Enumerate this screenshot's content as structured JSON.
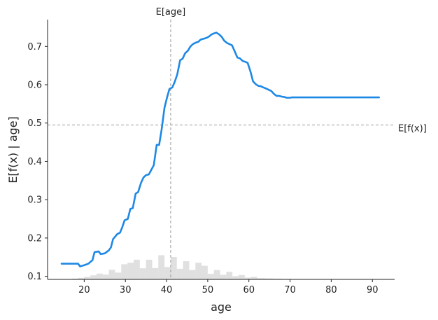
{
  "chart_data": {
    "type": "line",
    "title": "",
    "xlabel": "age",
    "ylabel": "E[f(x) | age]",
    "xlim": [
      11.1,
      95.4
    ],
    "ylim": [
      0.092,
      0.77
    ],
    "xticks": [
      20,
      30,
      40,
      50,
      60,
      70,
      80,
      90
    ],
    "yticks": [
      0.1,
      0.2,
      0.3,
      0.4,
      0.5,
      0.6,
      0.7
    ],
    "grid": false,
    "line_color": "#1e88e5",
    "series": [
      {
        "x": [
          14.5,
          17,
          18.5,
          19,
          20,
          21,
          22,
          22.5,
          23.5,
          24,
          25,
          26,
          26.5,
          27,
          28,
          28.7,
          29.2,
          29.8,
          30.6,
          31.2,
          31.8,
          32.5,
          33.1,
          33.8,
          34.4,
          35,
          35.7,
          36.3,
          36.9,
          37.6,
          38.2,
          38.8,
          39.5,
          40.1,
          40.7,
          41.4,
          42,
          42.6,
          43.3,
          43.9,
          44.5,
          45.2,
          45.8,
          46.4,
          47.1,
          47.7,
          48.3,
          49,
          49.6,
          50.2,
          50.9,
          51.5,
          52.1,
          52.8,
          53.4,
          54,
          54.7,
          55.3,
          55.9,
          56.6,
          57.2,
          57.8,
          58.5,
          59.1,
          59.7,
          60.4,
          61,
          61.6,
          62.3,
          62.9,
          63.5,
          64.2,
          64.8,
          65.4,
          66.1,
          66.7,
          67.3,
          68,
          68.6,
          69.2,
          69.9,
          70.5,
          71.1,
          71.8,
          72.4,
          73,
          74,
          75,
          76,
          77,
          78,
          80,
          82,
          84,
          86,
          88,
          90,
          91.6
        ],
        "y": [
          0.133,
          0.133,
          0.133,
          0.126,
          0.129,
          0.133,
          0.142,
          0.163,
          0.165,
          0.158,
          0.16,
          0.168,
          0.176,
          0.197,
          0.21,
          0.214,
          0.227,
          0.246,
          0.25,
          0.276,
          0.278,
          0.316,
          0.32,
          0.344,
          0.358,
          0.364,
          0.366,
          0.378,
          0.39,
          0.443,
          0.443,
          0.483,
          0.54,
          0.566,
          0.589,
          0.593,
          0.608,
          0.627,
          0.664,
          0.668,
          0.682,
          0.689,
          0.7,
          0.706,
          0.71,
          0.712,
          0.718,
          0.72,
          0.722,
          0.725,
          0.731,
          0.734,
          0.736,
          0.731,
          0.725,
          0.715,
          0.709,
          0.706,
          0.703,
          0.686,
          0.671,
          0.669,
          0.662,
          0.66,
          0.657,
          0.634,
          0.609,
          0.602,
          0.597,
          0.596,
          0.593,
          0.59,
          0.587,
          0.584,
          0.576,
          0.571,
          0.571,
          0.569,
          0.568,
          0.566,
          0.566,
          0.567,
          0.567,
          0.567,
          0.567,
          0.567,
          0.567,
          0.567,
          0.567,
          0.567,
          0.567,
          0.567,
          0.567,
          0.567,
          0.567,
          0.567,
          0.567,
          0.567
        ]
      }
    ],
    "reference_lines": [
      {
        "orientation": "vertical",
        "value": 41.0,
        "label": "E[age]",
        "color": "#999999"
      },
      {
        "orientation": "horizontal",
        "value": 0.495,
        "label": "E[f(x)]",
        "color": "#999999"
      }
    ],
    "histogram": {
      "color": "#cccccc",
      "opacity": 0.6,
      "bins": [
        {
          "x0": 17.0,
          "x1": 18.5,
          "frac": 0.03
        },
        {
          "x0": 18.5,
          "x1": 20.0,
          "frac": 0.06
        },
        {
          "x0": 20.0,
          "x1": 21.5,
          "frac": 0.1
        },
        {
          "x0": 21.5,
          "x1": 23.0,
          "frac": 0.16
        },
        {
          "x0": 23.0,
          "x1": 24.5,
          "frac": 0.23
        },
        {
          "x0": 24.5,
          "x1": 26.0,
          "frac": 0.19
        },
        {
          "x0": 26.0,
          "x1": 27.5,
          "frac": 0.38
        },
        {
          "x0": 27.5,
          "x1": 29.0,
          "frac": 0.27
        },
        {
          "x0": 29.0,
          "x1": 30.5,
          "frac": 0.6
        },
        {
          "x0": 30.5,
          "x1": 32.0,
          "frac": 0.66
        },
        {
          "x0": 32.0,
          "x1": 33.5,
          "frac": 0.78
        },
        {
          "x0": 33.5,
          "x1": 35.0,
          "frac": 0.44
        },
        {
          "x0": 35.0,
          "x1": 36.5,
          "frac": 0.78
        },
        {
          "x0": 36.5,
          "x1": 38.0,
          "frac": 0.45
        },
        {
          "x0": 38.0,
          "x1": 39.5,
          "frac": 0.96
        },
        {
          "x0": 39.5,
          "x1": 41.0,
          "frac": 0.49
        },
        {
          "x0": 41.0,
          "x1": 42.5,
          "frac": 0.89
        },
        {
          "x0": 42.5,
          "x1": 44.0,
          "frac": 0.42
        },
        {
          "x0": 44.0,
          "x1": 45.5,
          "frac": 0.72
        },
        {
          "x0": 45.5,
          "x1": 47.0,
          "frac": 0.37
        },
        {
          "x0": 47.0,
          "x1": 48.5,
          "frac": 0.66
        },
        {
          "x0": 48.5,
          "x1": 50.0,
          "frac": 0.54
        },
        {
          "x0": 50.0,
          "x1": 51.5,
          "frac": 0.22
        },
        {
          "x0": 51.5,
          "x1": 53.0,
          "frac": 0.37
        },
        {
          "x0": 53.0,
          "x1": 54.5,
          "frac": 0.18
        },
        {
          "x0": 54.5,
          "x1": 56.0,
          "frac": 0.3
        },
        {
          "x0": 56.0,
          "x1": 57.5,
          "frac": 0.13
        },
        {
          "x0": 57.5,
          "x1": 59.0,
          "frac": 0.17
        },
        {
          "x0": 59.0,
          "x1": 60.5,
          "frac": 0.07
        },
        {
          "x0": 60.5,
          "x1": 62.0,
          "frac": 0.1
        },
        {
          "x0": 62.0,
          "x1": 64.0,
          "frac": 0.05
        },
        {
          "x0": 64.0,
          "x1": 66.0,
          "frac": 0.04
        },
        {
          "x0": 66.0,
          "x1": 68.0,
          "frac": 0.03
        },
        {
          "x0": 68.0,
          "x1": 70.0,
          "frac": 0.02
        }
      ]
    }
  }
}
